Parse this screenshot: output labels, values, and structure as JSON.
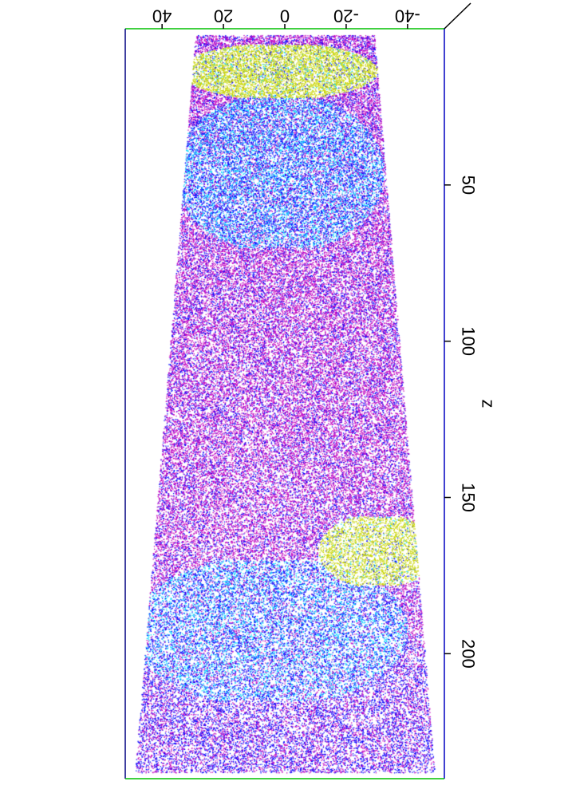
{
  "chart_data": {
    "type": "scatter",
    "title": "",
    "subtitle": "",
    "z_axis": {
      "label": "z",
      "range": [
        0,
        240
      ],
      "ticks": [
        {
          "value": 50,
          "label": "50"
        },
        {
          "value": 100,
          "label": "100"
        },
        {
          "value": 150,
          "label": "150"
        },
        {
          "value": 200,
          "label": "200"
        }
      ]
    },
    "y_axis": {
      "label": "",
      "range": [
        -52,
        52
      ],
      "ticks": [
        {
          "value": 40,
          "label": "40"
        },
        {
          "value": 20,
          "label": "20"
        },
        {
          "value": 0,
          "label": "0"
        },
        {
          "value": -20,
          "label": "-20"
        },
        {
          "value": -40,
          "label": "-40"
        }
      ]
    },
    "regions": [
      {
        "name": "",
        "color": "#c8d400",
        "z_range": [
          5,
          22
        ],
        "y_center": 2,
        "y_half_width": 30
      },
      {
        "name": "",
        "color": "#c8d400",
        "z_range": [
          156,
          178
        ],
        "y_center": -30,
        "y_half_width": 18
      },
      {
        "name": "",
        "color": "#00d8ff",
        "z_range": [
          22,
          70
        ],
        "y_center": 2,
        "y_half_width": 32
      },
      {
        "name": "",
        "color": "#00d8ff",
        "z_range": [
          170,
          215
        ],
        "y_center": 5,
        "y_half_width": 42
      }
    ],
    "point_colors": [
      "#0000ff",
      "#c000c0",
      "#00d8ff",
      "#c8d400"
    ],
    "frame_colors": {
      "top": "#00c000",
      "right": "#0000c0",
      "left": "#000080",
      "bottom": "#00c000"
    },
    "grid": false,
    "legend": "none"
  }
}
